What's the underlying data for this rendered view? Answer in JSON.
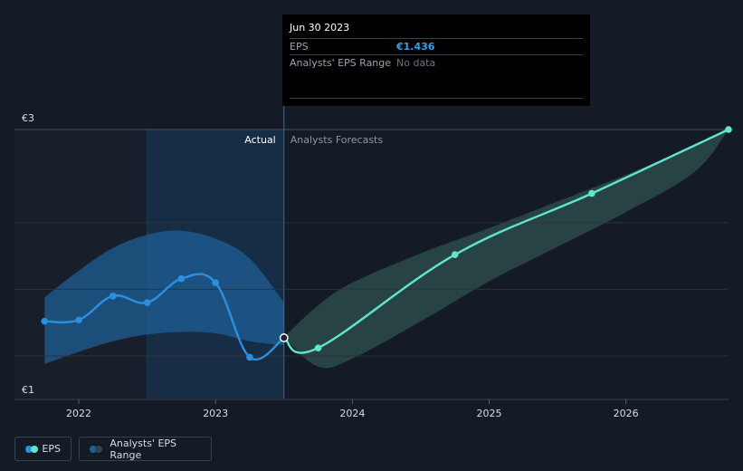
{
  "tooltip": {
    "date": "Jun 30 2023",
    "rows": [
      {
        "label": "EPS",
        "value": "€1.436"
      },
      {
        "label": "Analysts' EPS Range",
        "value": "No data"
      }
    ]
  },
  "legend": {
    "eps_label": "EPS",
    "range_label": "Analysts' EPS Range"
  },
  "colors": {
    "actual_line": "#2b8fe0",
    "forecast_line": "#5fe6cf",
    "actual_band": "#1e5f96",
    "forecast_band": "#2c4a4a",
    "legend_eps_dot_1": "#2b8fe0",
    "legend_eps_dot_2": "#5fe6cf",
    "legend_range_dot_1": "#1e5f96",
    "legend_range_dot_2": "#2c4a4a"
  },
  "chart_data": {
    "type": "line",
    "title": "",
    "xlabel": "",
    "ylabel": "",
    "y_tick_labels": [
      {
        "value": 3,
        "label": "€3"
      },
      {
        "value": 1,
        "label": "€1"
      }
    ],
    "x_tick_labels": [
      "2022",
      "2023",
      "2024",
      "2025",
      "2026"
    ],
    "x_tick_values": [
      2022.0,
      2023.0,
      2024.0,
      2025.0,
      2026.0
    ],
    "xlim": [
      2021.53,
      2026.75
    ],
    "ylim": [
      0.98,
      3.0
    ],
    "grid": true,
    "actual_label": "Actual",
    "forecast_label": "Analysts Forecasts",
    "actual_region_start": 2022.5,
    "divider_x": 2023.5,
    "series": [
      {
        "name": "EPS",
        "role": "actual",
        "points": [
          {
            "x": 2021.75,
            "y": 1.56
          },
          {
            "x": 2022.0,
            "y": 1.57
          },
          {
            "x": 2022.25,
            "y": 1.75
          },
          {
            "x": 2022.5,
            "y": 1.7
          },
          {
            "x": 2022.75,
            "y": 1.88
          },
          {
            "x": 2023.0,
            "y": 1.85
          },
          {
            "x": 2023.25,
            "y": 1.29
          },
          {
            "x": 2023.5,
            "y": 1.436
          }
        ]
      },
      {
        "name": "EPS",
        "role": "forecast",
        "points": [
          {
            "x": 2023.5,
            "y": 1.436
          },
          {
            "x": 2023.75,
            "y": 1.36
          },
          {
            "x": 2024.75,
            "y": 2.06
          },
          {
            "x": 2025.75,
            "y": 2.52
          },
          {
            "x": 2026.75,
            "y": 3.0
          }
        ]
      }
    ],
    "range_bands": [
      {
        "name": "Analysts' EPS Range",
        "role": "actual",
        "x": [
          2021.75,
          2022.0,
          2022.25,
          2022.5,
          2022.75,
          2023.0,
          2023.25,
          2023.5
        ],
        "upper": [
          1.74,
          1.94,
          2.11,
          2.21,
          2.24,
          2.18,
          2.03,
          1.7
        ],
        "lower": [
          1.24,
          1.33,
          1.41,
          1.46,
          1.48,
          1.47,
          1.41,
          1.38
        ]
      },
      {
        "name": "Analysts' EPS Range",
        "role": "forecast",
        "x": [
          2023.5,
          2023.75,
          2024.0,
          2024.5,
          2025.0,
          2025.5,
          2026.0,
          2026.5,
          2026.75
        ],
        "upper": [
          1.44,
          1.68,
          1.85,
          2.07,
          2.26,
          2.46,
          2.66,
          2.88,
          3.0
        ],
        "lower": [
          1.44,
          1.22,
          1.28,
          1.56,
          1.86,
          2.12,
          2.38,
          2.68,
          3.0
        ]
      }
    ]
  }
}
